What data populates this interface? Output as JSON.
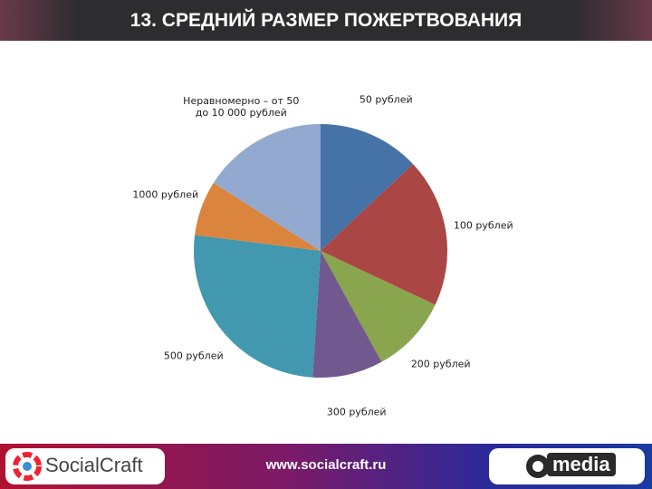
{
  "chart_data": {
    "type": "pie",
    "title": "13. СРЕДНИЙ РАЗМЕР ПОЖЕРТВОВАНИЯ",
    "categories": [
      "50 рублей",
      "100 рублей",
      "200 рублей",
      "300 рублей",
      "500 рублей",
      "1000 рублей",
      "Неравномерно – от 50 до 10 000 рублей"
    ],
    "values": [
      13,
      19,
      10,
      9,
      26,
      7,
      16
    ],
    "colors": [
      "#4572a7",
      "#aa4643",
      "#89a54e",
      "#71588f",
      "#4198af",
      "#db843d",
      "#93a9cf"
    ]
  },
  "footer": {
    "logo_left": "SocialCraft",
    "url": "www.socialcraft.ru",
    "logo_right": "media"
  }
}
